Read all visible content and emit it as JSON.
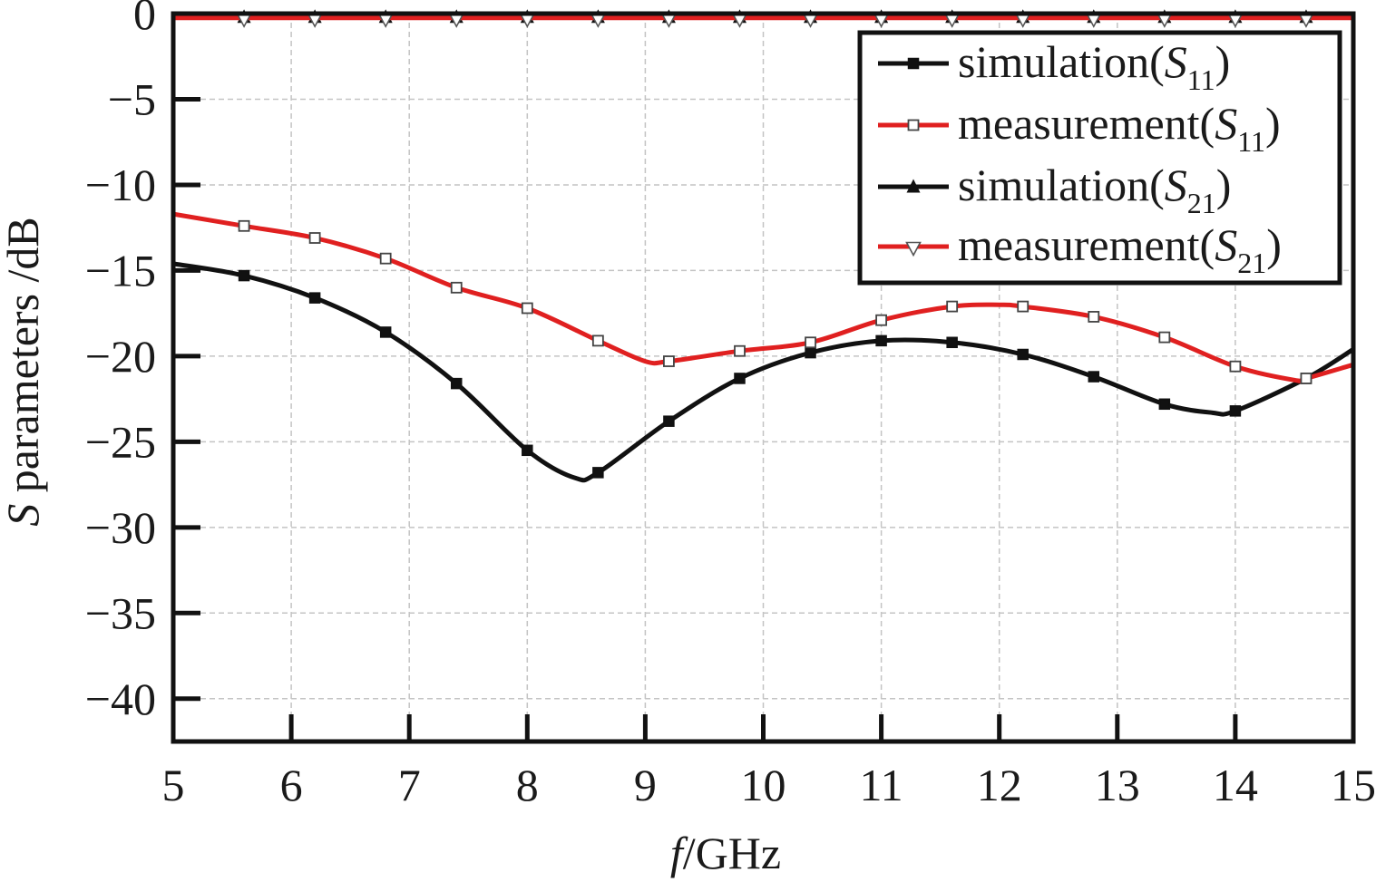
{
  "chart_data": {
    "type": "line",
    "xlabel_italic": "f",
    "xlabel_rest": "/GHz",
    "ylabel_italic": "S",
    "ylabel_rest": " parameters /dB",
    "xlim": [
      5,
      15
    ],
    "ylim": [
      -42.5,
      0
    ],
    "xticks": [
      5,
      6,
      7,
      8,
      9,
      10,
      11,
      12,
      13,
      14,
      15
    ],
    "xtick_labels": [
      "5",
      "6",
      "7",
      "8",
      "9",
      "10",
      "11",
      "12",
      "13",
      "14",
      "15"
    ],
    "yticks": [
      0,
      -5,
      -10,
      -15,
      -20,
      -25,
      -30,
      -35,
      -40
    ],
    "ytick_labels": [
      "0",
      "−5",
      "−10",
      "−15",
      "−20",
      "−25",
      "−30",
      "−35",
      "−40"
    ],
    "grid": true,
    "legend_position": "top-right",
    "series": [
      {
        "name_prefix": "simulation(",
        "name_sym": "S",
        "name_sub": "11",
        "name_suffix": ")",
        "color": "#111111",
        "marker": "filled-square",
        "x": [
          5.0,
          5.6,
          6.2,
          6.8,
          7.4,
          8.0,
          8.4,
          8.6,
          9.2,
          9.8,
          10.4,
          11.0,
          11.6,
          12.2,
          12.8,
          13.4,
          13.8,
          14.0,
          14.6,
          15.0
        ],
        "y": [
          -14.6,
          -15.3,
          -16.6,
          -18.6,
          -21.6,
          -25.5,
          -27.1,
          -26.8,
          -23.8,
          -21.3,
          -19.8,
          -19.1,
          -19.2,
          -19.9,
          -21.2,
          -22.8,
          -23.3,
          -23.2,
          -21.3,
          -19.6
        ]
      },
      {
        "name_prefix": "measurement(",
        "name_sym": "S",
        "name_sub": "11",
        "name_suffix": ")",
        "color": "#e02020",
        "marker": "open-square",
        "x": [
          5.0,
          5.6,
          6.2,
          6.8,
          7.4,
          8.0,
          8.6,
          9.0,
          9.2,
          9.8,
          10.4,
          11.0,
          11.6,
          12.0,
          12.2,
          12.8,
          13.4,
          14.0,
          14.5,
          14.6,
          15.0
        ],
        "y": [
          -11.7,
          -12.4,
          -13.1,
          -14.3,
          -16.0,
          -17.2,
          -19.1,
          -20.3,
          -20.3,
          -19.7,
          -19.2,
          -17.9,
          -17.1,
          -17.0,
          -17.1,
          -17.7,
          -18.9,
          -20.6,
          -21.4,
          -21.3,
          -20.5
        ]
      },
      {
        "name_prefix": "simulation(",
        "name_sym": "S",
        "name_sub": "21",
        "name_suffix": ")",
        "color": "#111111",
        "marker": "filled-triangle-up",
        "x": [
          5.0,
          5.6,
          6.2,
          6.8,
          7.4,
          8.0,
          8.6,
          9.2,
          9.8,
          10.4,
          11.0,
          11.6,
          12.2,
          12.8,
          13.4,
          14.0,
          14.6,
          15.0
        ],
        "y": [
          -0.2,
          -0.2,
          -0.2,
          -0.2,
          -0.2,
          -0.2,
          -0.2,
          -0.2,
          -0.2,
          -0.2,
          -0.2,
          -0.2,
          -0.2,
          -0.2,
          -0.2,
          -0.2,
          -0.2,
          -0.2
        ]
      },
      {
        "name_prefix": "measurement(",
        "name_sym": "S",
        "name_sub": "21",
        "name_suffix": ")",
        "color": "#e02020",
        "marker": "open-triangle-down",
        "x": [
          5.0,
          5.6,
          6.2,
          6.8,
          7.4,
          8.0,
          8.6,
          9.2,
          9.8,
          10.4,
          11.0,
          11.6,
          12.2,
          12.8,
          13.4,
          14.0,
          14.6,
          15.0
        ],
        "y": [
          -0.25,
          -0.25,
          -0.25,
          -0.25,
          -0.25,
          -0.25,
          -0.25,
          -0.25,
          -0.25,
          -0.25,
          -0.25,
          -0.25,
          -0.25,
          -0.25,
          -0.25,
          -0.25,
          -0.25,
          -0.25
        ]
      }
    ]
  }
}
